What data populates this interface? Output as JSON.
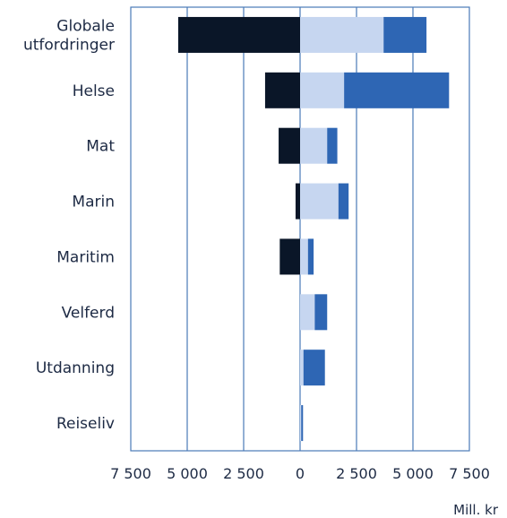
{
  "chart_data": {
    "type": "bar",
    "orientation": "horizontal",
    "stacked": true,
    "categories": [
      "Globale utfordringer",
      "Helse",
      "Mat",
      "Marin",
      "Maritim",
      "Velferd",
      "Utdanning",
      "Reiseliv"
    ],
    "category_lines": [
      [
        "Globale",
        "utfordringer"
      ],
      [
        "Helse"
      ],
      [
        "Mat"
      ],
      [
        "Marin"
      ],
      [
        "Maritim"
      ],
      [
        "Velferd"
      ],
      [
        "Utdanning"
      ],
      [
        "Reiseliv"
      ]
    ],
    "series": [
      {
        "color": "#0a1628",
        "values": [
          -5400,
          -1550,
          -950,
          -200,
          -900,
          0,
          0,
          0
        ]
      },
      {
        "color": "#c6d6f0",
        "values": [
          3700,
          1950,
          1200,
          1700,
          350,
          650,
          150,
          50
        ]
      },
      {
        "color": "#2e66b4",
        "values": [
          1900,
          4650,
          450,
          450,
          250,
          550,
          950,
          80
        ]
      }
    ],
    "xlim": [
      -7500,
      7500
    ],
    "xticks": [
      -7500,
      -5000,
      -2500,
      0,
      2500,
      5000,
      7500
    ],
    "xtick_labels": [
      "7 500",
      "5 000",
      "2 500",
      "0",
      "2 500",
      "5 000",
      "7 500"
    ],
    "xlabel": "Mill. kr",
    "grid": "vertical",
    "axis_color": "#4a7ab8"
  }
}
